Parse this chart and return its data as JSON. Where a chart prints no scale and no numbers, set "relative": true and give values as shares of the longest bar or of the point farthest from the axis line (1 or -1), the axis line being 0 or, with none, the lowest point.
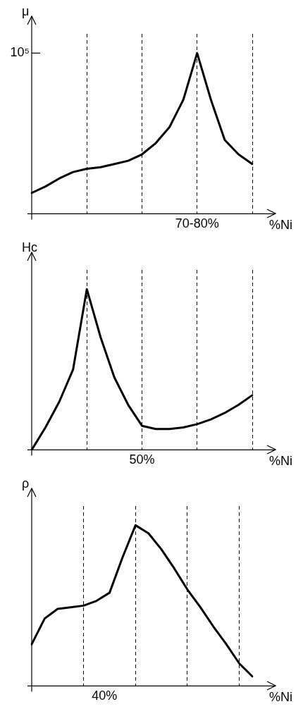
{
  "chart_data": [
    {
      "type": "line",
      "relative": true,
      "ylabel": "μ",
      "xlabel": "%Ni",
      "color": "#000000",
      "line_style": "solid",
      "marker": "none",
      "legend": false,
      "tick_labels": "x",
      "categories": [
        null,
        null,
        null,
        null,
        null,
        null,
        null,
        null,
        null,
        null,
        null,
        null,
        null,
        null,
        null,
        null,
        null
      ],
      "values": [
        0.13,
        0.17,
        0.22,
        0.26,
        0.28,
        0.29,
        0.31,
        0.33,
        0.37,
        0.44,
        0.54,
        0.71,
        1,
        0.71,
        0.46,
        0.37,
        0.31
      ],
      "grid": "x",
      "annotations": [
        "10⁵",
        "70-80%"
      ]
    },
    {
      "type": "line",
      "relative": true,
      "ylabel": "Hc",
      "xlabel": "%Ni",
      "color": "#000000",
      "line_style": "solid",
      "marker": "none",
      "legend": false,
      "tick_labels": "x",
      "categories": [
        null,
        null,
        null,
        null,
        null,
        null,
        null,
        null,
        null,
        null,
        null,
        null,
        null,
        null,
        null,
        null,
        null
      ],
      "values": [
        0,
        0.14,
        0.3,
        0.5,
        1,
        0.7,
        0.45,
        0.28,
        0.15,
        0.13,
        0.13,
        0.14,
        0.16,
        0.19,
        0.23,
        0.28,
        0.34
      ],
      "grid": "x",
      "annotations": [
        "50%"
      ]
    },
    {
      "type": "line",
      "relative": true,
      "ylabel": "ρ",
      "xlabel": "%Ni",
      "color": "#000000",
      "line_style": "solid",
      "marker": "none",
      "legend": false,
      "tick_labels": "x",
      "categories": [
        null,
        null,
        null,
        null,
        null,
        null,
        null,
        null,
        null,
        null,
        null,
        null,
        null,
        null,
        null,
        null,
        null,
        null
      ],
      "values": [
        0.26,
        0.42,
        0.48,
        0.49,
        0.5,
        0.53,
        0.58,
        0.8,
        1,
        0.95,
        0.85,
        0.73,
        0.6,
        0.49,
        0.37,
        0.26,
        0.14,
        0.06
      ],
      "grid": "x",
      "annotations": [
        "40%"
      ]
    }
  ]
}
